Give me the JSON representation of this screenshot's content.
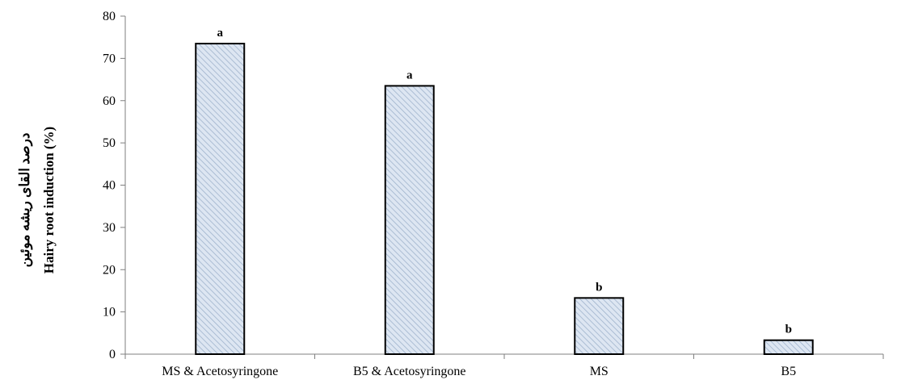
{
  "chart_data": {
    "type": "bar",
    "categories": [
      "MS & Acetosyringone",
      "B5 & Acetosyringone",
      "MS",
      "B5"
    ],
    "values": [
      73.5,
      63.5,
      13.3,
      3.3
    ],
    "annotations": [
      "a",
      "a",
      "b",
      "b"
    ],
    "ylabel_fa": "درصد القای ریشه موئین",
    "ylabel_en": "Hairy root induction (%)",
    "xlabel": "",
    "ylim": [
      0,
      80
    ],
    "yticks": [
      0,
      10,
      20,
      30,
      40,
      50,
      60,
      70,
      80
    ],
    "grid": false,
    "legend": "none",
    "bar_fill": "#dde6f2",
    "bar_hatch": "#9fb3cc",
    "bar_stroke": "#000000"
  }
}
